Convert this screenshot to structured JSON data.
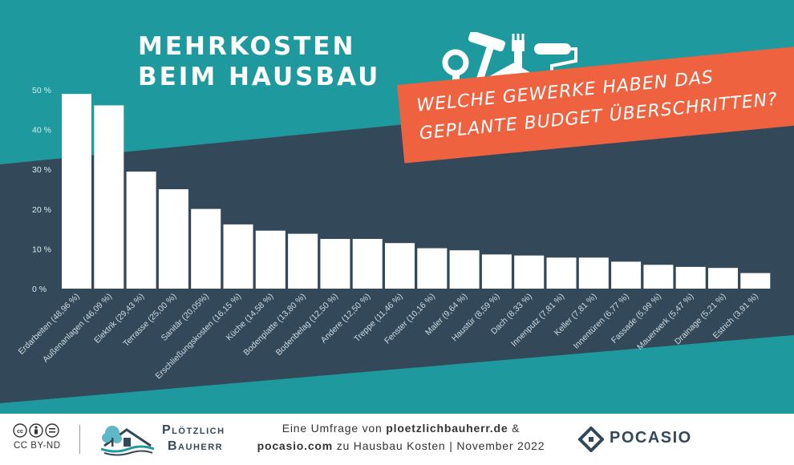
{
  "header": {
    "title_line1": "MEHRKOSTEN",
    "title_line2": "BEIM HAUSBAU"
  },
  "banner": {
    "line1": "WELCHE GEWERKE HABEN DAS",
    "line2": "GEPLANTE BUDGET ÜBERSCHRITTEN?"
  },
  "footer": {
    "license_label": "CC BY-ND",
    "brand_line1": "Plötzlich",
    "brand_line2": "Bauherr",
    "caption_line1_prefix": "Eine Umfrage von ",
    "caption_line1_site": "ploetzlichbauherr.de",
    "caption_line1_suffix": " &",
    "caption_line2_site": "pocasio.com",
    "caption_line2_rest": " zu Hausbau Kosten | November 2022",
    "partner_name": "POCASIO"
  },
  "colors": {
    "teal_background": "#1e9a9e",
    "dark_band": "#33495a",
    "bar": "#ffffff",
    "banner": "#ee6240"
  },
  "chart_data": {
    "type": "bar",
    "categories": [
      "Erdarbeiten (48,96 %)",
      "Außenanlagen (46,09 %)",
      "Elektrik (29,43 %)",
      "Terrasse (25,00 %)",
      "Sanitär (20,05%)",
      "Erschließungskosten (16,15 %)",
      "Küche (14,58 %)",
      "Bodenplatte (13,80 %)",
      "Bodenbelag (12,50 %)",
      "Andere (12,50 %)",
      "Treppe (11,46 %)",
      "Fenster (10,16 %)",
      "Maler (9,64 %)",
      "Haustür (8,59 %)",
      "Dach (8,33 %)",
      "Innenputz (7,81 %)",
      "Keller (7,81 %)",
      "Innentüren (6,77 %)",
      "Fassade (5,99 %)",
      "Mauerwerk (5,47 %)",
      "Drainage (5,21 %)",
      "Estrich (3,91 %)"
    ],
    "values": [
      48.96,
      46.09,
      29.43,
      25.0,
      20.05,
      16.15,
      14.58,
      13.8,
      12.5,
      12.5,
      11.46,
      10.16,
      9.64,
      8.59,
      8.33,
      7.81,
      7.81,
      6.77,
      5.99,
      5.47,
      5.21,
      3.91
    ],
    "yticks": [
      "0 %",
      "10 %",
      "20 %",
      "30 %",
      "40 %",
      "50 %"
    ],
    "ylim": [
      0,
      50
    ],
    "grid": false,
    "legend": "none"
  }
}
